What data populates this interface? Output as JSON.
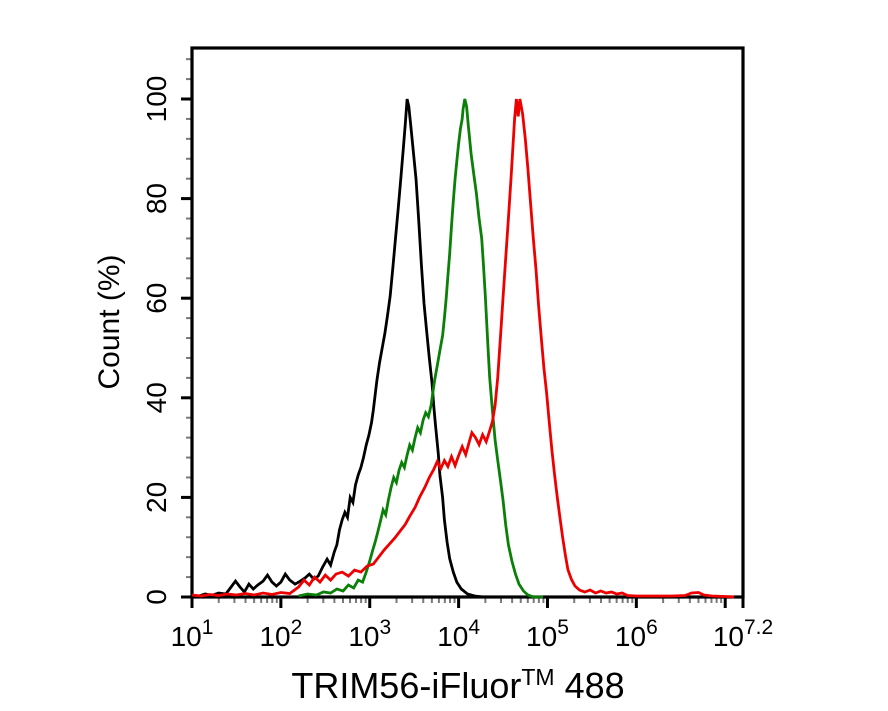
{
  "chart_data": {
    "type": "line",
    "subtype": "flow_cytometry_histogram_overlay",
    "title": "",
    "xlabel": "TRIM56-iFluor™ 488",
    "xlabel_parts": {
      "main": "TRIM56-iFluor",
      "trademark": "TM",
      "suffix": " 488"
    },
    "ylabel": "Count (%)",
    "x_scale": "log10",
    "grid": false,
    "legend": null,
    "x_axis": {
      "base_label": "10",
      "range_log10": [
        1,
        7.2
      ],
      "major_ticks": [
        {
          "log10": 1,
          "exponent_label": "1"
        },
        {
          "log10": 2,
          "exponent_label": "2"
        },
        {
          "log10": 3,
          "exponent_label": "3"
        },
        {
          "log10": 4,
          "exponent_label": "4"
        },
        {
          "log10": 5,
          "exponent_label": "5"
        },
        {
          "log10": 6,
          "exponent_label": "6"
        },
        {
          "log10": 7,
          "exponent_label": null
        },
        {
          "log10": 7.2,
          "exponent_label": "7.2"
        }
      ],
      "minor_ticks": "log positions 2-9 within each decade, gray"
    },
    "y_axis": {
      "range": [
        0,
        110
      ],
      "major_ticks": [
        {
          "value": 0,
          "label": "0"
        },
        {
          "value": 20,
          "label": "20"
        },
        {
          "value": 40,
          "label": "40"
        },
        {
          "value": 60,
          "label": "60"
        },
        {
          "value": 80,
          "label": "80"
        },
        {
          "value": 100,
          "label": "100"
        }
      ],
      "minor_tick_step": 4
    },
    "colors": {
      "axis": "#000000",
      "minor_tick": "#7a7a7a",
      "series_black": "#000000",
      "series_green": "#0a8008",
      "series_red": "#ef0000"
    },
    "series": [
      {
        "name": "black",
        "color": "#000000",
        "points_log10_percent": [
          [
            1.0,
            0.3
          ],
          [
            1.08,
            0.2
          ],
          [
            1.15,
            0.6
          ],
          [
            1.22,
            0.3
          ],
          [
            1.3,
            0.8
          ],
          [
            1.38,
            0.6
          ],
          [
            1.44,
            2.0
          ],
          [
            1.49,
            3.2
          ],
          [
            1.54,
            2.0
          ],
          [
            1.59,
            1.0
          ],
          [
            1.64,
            2.6
          ],
          [
            1.69,
            1.6
          ],
          [
            1.74,
            2.4
          ],
          [
            1.8,
            3.2
          ],
          [
            1.85,
            4.4
          ],
          [
            1.9,
            3.0
          ],
          [
            1.95,
            2.2
          ],
          [
            2.0,
            3.0
          ],
          [
            2.05,
            4.6
          ],
          [
            2.1,
            3.4
          ],
          [
            2.16,
            2.6
          ],
          [
            2.22,
            3.2
          ],
          [
            2.27,
            3.8
          ],
          [
            2.32,
            4.6
          ],
          [
            2.37,
            3.6
          ],
          [
            2.42,
            4.2
          ],
          [
            2.47,
            6.0
          ],
          [
            2.52,
            7.6
          ],
          [
            2.56,
            6.4
          ],
          [
            2.6,
            9.0
          ],
          [
            2.63,
            10.5
          ],
          [
            2.66,
            13.5
          ],
          [
            2.69,
            15.5
          ],
          [
            2.72,
            17.0
          ],
          [
            2.75,
            16.0
          ],
          [
            2.78,
            20.0
          ],
          [
            2.81,
            19.0
          ],
          [
            2.84,
            22.5
          ],
          [
            2.87,
            24.5
          ],
          [
            2.9,
            26.0
          ],
          [
            2.93,
            28.0
          ],
          [
            2.96,
            30.5
          ],
          [
            2.99,
            32.5
          ],
          [
            3.02,
            35.0
          ],
          [
            3.04,
            37.5
          ],
          [
            3.06,
            40.5
          ],
          [
            3.08,
            43.5
          ],
          [
            3.11,
            47.0
          ],
          [
            3.14,
            50.0
          ],
          [
            3.17,
            53.0
          ],
          [
            3.2,
            56.5
          ],
          [
            3.23,
            60.5
          ],
          [
            3.26,
            66.0
          ],
          [
            3.29,
            72.0
          ],
          [
            3.32,
            78.0
          ],
          [
            3.35,
            84.0
          ],
          [
            3.38,
            90.5
          ],
          [
            3.4,
            95.0
          ],
          [
            3.42,
            100.0
          ],
          [
            3.44,
            98.5
          ],
          [
            3.46,
            95.0
          ],
          [
            3.49,
            89.5
          ],
          [
            3.52,
            84.0
          ],
          [
            3.55,
            76.0
          ],
          [
            3.58,
            67.0
          ],
          [
            3.61,
            59.0
          ],
          [
            3.64,
            53.5
          ],
          [
            3.67,
            48.0
          ],
          [
            3.7,
            43.0
          ],
          [
            3.72,
            38.5
          ],
          [
            3.74,
            34.5
          ],
          [
            3.77,
            29.0
          ],
          [
            3.79,
            24.5
          ],
          [
            3.82,
            20.0
          ],
          [
            3.84,
            15.5
          ],
          [
            3.87,
            11.0
          ],
          [
            3.9,
            7.7
          ],
          [
            3.94,
            5.0
          ],
          [
            3.98,
            3.0
          ],
          [
            4.03,
            1.6
          ],
          [
            4.1,
            0.6
          ],
          [
            4.18,
            0.2
          ],
          [
            4.28,
            0.0
          ],
          [
            4.4,
            0.0
          ]
        ]
      },
      {
        "name": "green",
        "color": "#0a8008",
        "points_log10_percent": [
          [
            2.2,
            0.2
          ],
          [
            2.3,
            0.6
          ],
          [
            2.4,
            0.4
          ],
          [
            2.48,
            1.0
          ],
          [
            2.56,
            0.8
          ],
          [
            2.63,
            1.6
          ],
          [
            2.7,
            1.2
          ],
          [
            2.76,
            2.4
          ],
          [
            2.82,
            1.8
          ],
          [
            2.87,
            3.4
          ],
          [
            2.92,
            3.0
          ],
          [
            2.96,
            5.0
          ],
          [
            3.0,
            7.2
          ],
          [
            3.03,
            9.2
          ],
          [
            3.06,
            11.0
          ],
          [
            3.09,
            13.0
          ],
          [
            3.12,
            15.2
          ],
          [
            3.15,
            17.5
          ],
          [
            3.18,
            16.5
          ],
          [
            3.21,
            19.5
          ],
          [
            3.24,
            22.0
          ],
          [
            3.27,
            24.0
          ],
          [
            3.3,
            23.0
          ],
          [
            3.33,
            25.5
          ],
          [
            3.36,
            27.0
          ],
          [
            3.39,
            26.0
          ],
          [
            3.42,
            28.5
          ],
          [
            3.45,
            30.5
          ],
          [
            3.48,
            29.5
          ],
          [
            3.51,
            32.0
          ],
          [
            3.54,
            34.0
          ],
          [
            3.57,
            33.0
          ],
          [
            3.6,
            35.5
          ],
          [
            3.63,
            37.0
          ],
          [
            3.66,
            36.2
          ],
          [
            3.69,
            38.5
          ],
          [
            3.71,
            41.0
          ],
          [
            3.73,
            43.5
          ],
          [
            3.76,
            46.5
          ],
          [
            3.79,
            49.5
          ],
          [
            3.82,
            52.5
          ],
          [
            3.84,
            56.0
          ],
          [
            3.86,
            60.0
          ],
          [
            3.88,
            64.5
          ],
          [
            3.9,
            69.0
          ],
          [
            3.92,
            74.5
          ],
          [
            3.94,
            79.5
          ],
          [
            3.96,
            84.0
          ],
          [
            3.98,
            87.5
          ],
          [
            4.0,
            91.0
          ],
          [
            4.02,
            94.0
          ],
          [
            4.04,
            96.0
          ],
          [
            4.05,
            98.0
          ],
          [
            4.07,
            100.0
          ],
          [
            4.09,
            98.5
          ],
          [
            4.11,
            94.5
          ],
          [
            4.14,
            89.0
          ],
          [
            4.17,
            85.0
          ],
          [
            4.2,
            81.0
          ],
          [
            4.23,
            76.0
          ],
          [
            4.26,
            72.0
          ],
          [
            4.28,
            66.5
          ],
          [
            4.3,
            60.5
          ],
          [
            4.33,
            50.5
          ],
          [
            4.35,
            44.0
          ],
          [
            4.38,
            37.5
          ],
          [
            4.41,
            31.5
          ],
          [
            4.44,
            27.5
          ],
          [
            4.47,
            23.5
          ],
          [
            4.5,
            19.5
          ],
          [
            4.53,
            14.5
          ],
          [
            4.56,
            10.5
          ],
          [
            4.6,
            7.2
          ],
          [
            4.64,
            4.6
          ],
          [
            4.68,
            2.6
          ],
          [
            4.73,
            1.2
          ],
          [
            4.78,
            0.4
          ],
          [
            4.84,
            0.0
          ],
          [
            4.95,
            0.0
          ]
        ]
      },
      {
        "name": "red",
        "color": "#ef0000",
        "points_log10_percent": [
          [
            1.0,
            0.4
          ],
          [
            1.1,
            0.2
          ],
          [
            1.2,
            0.5
          ],
          [
            1.3,
            0.3
          ],
          [
            1.4,
            0.6
          ],
          [
            1.5,
            0.4
          ],
          [
            1.6,
            0.7
          ],
          [
            1.7,
            0.4
          ],
          [
            1.8,
            0.8
          ],
          [
            1.9,
            0.5
          ],
          [
            2.0,
            0.9
          ],
          [
            2.1,
            0.7
          ],
          [
            2.2,
            2.0
          ],
          [
            2.26,
            3.4
          ],
          [
            2.32,
            2.4
          ],
          [
            2.38,
            4.0
          ],
          [
            2.44,
            3.0
          ],
          [
            2.5,
            4.4
          ],
          [
            2.56,
            3.4
          ],
          [
            2.62,
            4.6
          ],
          [
            2.69,
            5.0
          ],
          [
            2.76,
            4.2
          ],
          [
            2.83,
            5.4
          ],
          [
            2.9,
            5.0
          ],
          [
            2.97,
            6.2
          ],
          [
            3.04,
            6.6
          ],
          [
            3.1,
            8.0
          ],
          [
            3.16,
            9.4
          ],
          [
            3.22,
            10.6
          ],
          [
            3.28,
            11.8
          ],
          [
            3.34,
            13.2
          ],
          [
            3.4,
            14.6
          ],
          [
            3.45,
            16.2
          ],
          [
            3.51,
            18.0
          ],
          [
            3.56,
            20.0
          ],
          [
            3.62,
            22.0
          ],
          [
            3.67,
            24.0
          ],
          [
            3.72,
            25.6
          ],
          [
            3.76,
            27.2
          ],
          [
            3.8,
            25.8
          ],
          [
            3.84,
            27.4
          ],
          [
            3.88,
            26.2
          ],
          [
            3.92,
            28.2
          ],
          [
            3.96,
            26.4
          ],
          [
            4.0,
            28.4
          ],
          [
            4.04,
            30.2
          ],
          [
            4.08,
            28.6
          ],
          [
            4.12,
            31.2
          ],
          [
            4.15,
            33.0
          ],
          [
            4.19,
            32.0
          ],
          [
            4.23,
            30.6
          ],
          [
            4.27,
            32.6
          ],
          [
            4.31,
            31.2
          ],
          [
            4.35,
            33.4
          ],
          [
            4.38,
            35.2
          ],
          [
            4.41,
            38.5
          ],
          [
            4.44,
            44.0
          ],
          [
            4.47,
            52.0
          ],
          [
            4.5,
            60.0
          ],
          [
            4.53,
            68.0
          ],
          [
            4.56,
            76.0
          ],
          [
            4.59,
            84.0
          ],
          [
            4.61,
            90.0
          ],
          [
            4.63,
            96.0
          ],
          [
            4.65,
            100.0
          ],
          [
            4.67,
            96.5
          ],
          [
            4.69,
            100.0
          ],
          [
            4.72,
            97.0
          ],
          [
            4.75,
            92.0
          ],
          [
            4.78,
            86.0
          ],
          [
            4.81,
            79.0
          ],
          [
            4.84,
            72.0
          ],
          [
            4.87,
            66.0
          ],
          [
            4.9,
            58.5
          ],
          [
            4.93,
            52.0
          ],
          [
            4.96,
            46.0
          ],
          [
            4.99,
            41.0
          ],
          [
            5.02,
            35.0
          ],
          [
            5.05,
            29.5
          ],
          [
            5.08,
            24.5
          ],
          [
            5.11,
            20.0
          ],
          [
            5.14,
            16.0
          ],
          [
            5.17,
            12.0
          ],
          [
            5.2,
            8.5
          ],
          [
            5.23,
            5.5
          ],
          [
            5.27,
            3.5
          ],
          [
            5.31,
            2.2
          ],
          [
            5.36,
            1.4
          ],
          [
            5.42,
            1.0
          ],
          [
            5.48,
            1.4
          ],
          [
            5.54,
            0.8
          ],
          [
            5.6,
            1.2
          ],
          [
            5.66,
            0.8
          ],
          [
            5.72,
            1.0
          ],
          [
            5.78,
            0.6
          ],
          [
            5.84,
            0.8
          ],
          [
            5.9,
            0.3
          ],
          [
            6.0,
            0.2
          ],
          [
            6.2,
            0.2
          ],
          [
            6.4,
            0.2
          ],
          [
            6.55,
            0.3
          ],
          [
            6.62,
            0.8
          ],
          [
            6.7,
            0.9
          ],
          [
            6.76,
            0.4
          ],
          [
            6.85,
            0.2
          ],
          [
            7.0,
            0.1
          ],
          [
            7.1,
            0.0
          ]
        ]
      }
    ]
  }
}
